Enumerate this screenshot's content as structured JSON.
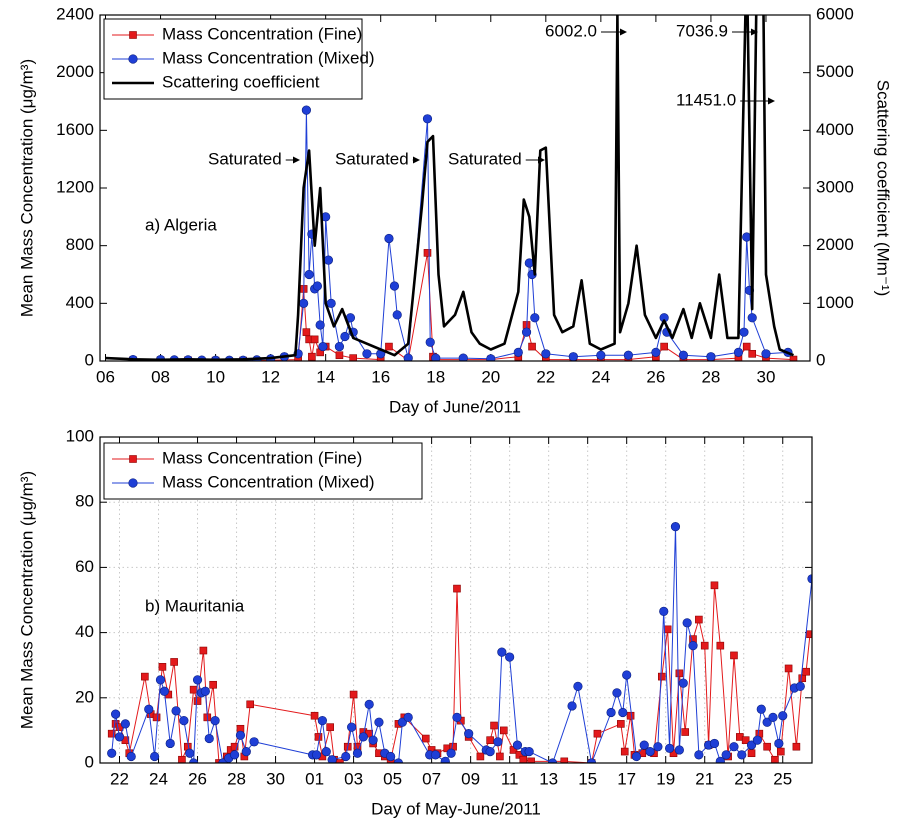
{
  "chart_data": [
    {
      "type": "line",
      "xlabel": "Day of June/2011",
      "ylabel": "Mean Mass Concentration (μg/m³)",
      "y2label": "Scattering coefficient (Mm⁻¹)",
      "xlim": [
        5.8,
        31.6
      ],
      "xticks": [
        {
          "value": 6,
          "label": "06"
        },
        {
          "value": 8,
          "label": "08"
        },
        10,
        12,
        14,
        16,
        18,
        20,
        22,
        24,
        26,
        28,
        30
      ],
      "ylim": [
        0,
        2400
      ],
      "yticks": [
        0,
        400,
        800,
        1200,
        1600,
        2000,
        2400
      ],
      "y2lim": [
        0,
        6000
      ],
      "y2ticks": [
        0,
        1000,
        2000,
        3000,
        4000,
        5000,
        6000
      ],
      "grid": false,
      "legend": "upper left",
      "annotations": [
        "Saturated",
        "Saturated",
        "Saturated",
        "6002.0",
        "7036.9",
        "11451.0",
        "a) Algeria"
      ],
      "series": [
        {
          "name": "Mass Concentration (Fine)",
          "color": "#e31a1c",
          "marker": "square",
          "x": [
            7,
            8,
            9,
            10,
            11,
            12,
            13,
            13.2,
            13.3,
            13.4,
            13.5,
            13.6,
            13.8,
            14,
            14.5,
            15,
            16,
            16.3,
            17,
            17.7,
            17.9,
            18,
            19,
            20,
            21,
            21.3,
            21.5,
            22,
            23,
            24,
            25,
            26,
            26.3,
            27,
            28,
            29,
            29.3,
            29.5,
            30,
            31
          ],
          "values": [
            5,
            5,
            5,
            3,
            3,
            5,
            10,
            500,
            200,
            150,
            30,
            150,
            60,
            100,
            40,
            20,
            10,
            100,
            5,
            750,
            30,
            10,
            10,
            10,
            30,
            250,
            100,
            10,
            10,
            10,
            10,
            30,
            100,
            10,
            10,
            20,
            100,
            50,
            20,
            10
          ]
        },
        {
          "name": "Mass Concentration (Mixed)",
          "color": "#1f3fd6",
          "marker": "circle",
          "x": [
            7,
            8,
            8.5,
            9,
            9.5,
            10,
            10.5,
            11,
            11.5,
            12,
            12.5,
            13,
            13.2,
            13.3,
            13.4,
            13.5,
            13.6,
            13.7,
            13.8,
            13.9,
            14,
            14.1,
            14.2,
            14.5,
            14.7,
            14.9,
            15,
            15.5,
            16,
            16.3,
            16.5,
            16.6,
            17,
            17.7,
            17.8,
            18,
            19,
            20,
            21,
            21.3,
            21.4,
            21.5,
            21.6,
            22,
            23,
            24,
            25,
            26,
            26.3,
            26.4,
            27,
            28,
            29,
            29.2,
            29.3,
            29.4,
            29.5,
            30,
            30.8
          ],
          "values": [
            10,
            10,
            8,
            8,
            6,
            5,
            5,
            5,
            8,
            15,
            30,
            50,
            400,
            1740,
            600,
            880,
            500,
            520,
            250,
            100,
            1000,
            700,
            400,
            100,
            170,
            300,
            200,
            50,
            50,
            850,
            520,
            320,
            20,
            1680,
            130,
            20,
            20,
            15,
            60,
            200,
            680,
            600,
            300,
            50,
            30,
            40,
            40,
            60,
            300,
            200,
            40,
            30,
            60,
            200,
            860,
            490,
            300,
            50,
            60
          ]
        },
        {
          "name": "Scattering coefficient",
          "color": "#000000",
          "marker": "none",
          "axis": "y2",
          "x": [
            6,
            7,
            8,
            9,
            10,
            11,
            12,
            12.9,
            13,
            13.2,
            13.4,
            13.6,
            13.8,
            14,
            14.3,
            14.6,
            15,
            15.5,
            16,
            16.5,
            17,
            17.5,
            17.7,
            17.9,
            18.1,
            18.3,
            18.7,
            19,
            19.3,
            19.6,
            20,
            20.5,
            21,
            21.2,
            21.4,
            21.6,
            21.8,
            22,
            22.3,
            22.6,
            23,
            23.3,
            23.6,
            24,
            24.5,
            24.6,
            24.7,
            25,
            25.3,
            25.6,
            26,
            26.3,
            26.6,
            27,
            27.3,
            27.6,
            28,
            28.3,
            28.6,
            29,
            29.3,
            29.5,
            29.8,
            30,
            30.3,
            30.5,
            31
          ],
          "values": [
            50,
            30,
            20,
            30,
            20,
            30,
            50,
            100,
            800,
            3000,
            3650,
            2000,
            3000,
            1000,
            600,
            900,
            400,
            300,
            200,
            100,
            300,
            2700,
            3800,
            3900,
            1500,
            600,
            800,
            1200,
            500,
            300,
            200,
            300,
            1200,
            2800,
            2500,
            1500,
            3650,
            3700,
            800,
            500,
            600,
            1400,
            300,
            200,
            300,
            6002,
            500,
            1000,
            2000,
            800,
            400,
            700,
            400,
            900,
            400,
            1000,
            400,
            1500,
            400,
            400,
            7036.9,
            900,
            11451,
            1500,
            600,
            200,
            100
          ]
        }
      ]
    },
    {
      "type": "line",
      "xlabel": "Day of May-June/2011",
      "ylabel": "Mean Mass Concentration (μg/m³)",
      "xlim": [
        21,
        57.5
      ],
      "xticks": [
        22,
        24,
        26,
        28,
        30,
        {
          "value": 32,
          "label": "01"
        },
        {
          "value": 34,
          "label": "03"
        },
        {
          "value": 36,
          "label": "05"
        },
        {
          "value": 38,
          "label": "07"
        },
        {
          "value": 40,
          "label": "09"
        },
        {
          "value": 42,
          "label": "11"
        },
        {
          "value": 44,
          "label": "13"
        },
        {
          "value": 46,
          "label": "15"
        },
        {
          "value": 48,
          "label": "17"
        },
        {
          "value": 50,
          "label": "19"
        },
        {
          "value": 52,
          "label": "21"
        },
        {
          "value": 54,
          "label": "23"
        },
        {
          "value": 56,
          "label": "25"
        }
      ],
      "ylim": [
        0,
        100
      ],
      "yticks": [
        0,
        20,
        40,
        60,
        80,
        100
      ],
      "grid": true,
      "legend": "upper left",
      "annotations": [
        "b) Mauritania"
      ],
      "series": [
        {
          "name": "Mass Concentration (Fine)",
          "color": "#e31a1c",
          "marker": "square",
          "x": [
            21.6,
            21.8,
            22,
            22.3,
            22.5,
            23.3,
            23.6,
            23.9,
            24.2,
            24.5,
            24.8,
            25.2,
            25.5,
            25.8,
            26,
            26.3,
            26.5,
            26.8,
            27.1,
            27.5,
            27.7,
            27.9,
            28.2,
            28.4,
            28.7,
            32,
            32.2,
            32.4,
            32.8,
            33,
            33.3,
            33.7,
            34,
            34.2,
            34.5,
            34.8,
            35,
            35.3,
            35.6,
            35.9,
            36.3,
            36.6,
            37.7,
            38,
            38.3,
            38.8,
            39.1,
            39.3,
            39.5,
            39.9,
            40.5,
            41,
            41.2,
            41.5,
            41.7,
            42.2,
            42.5,
            42.7,
            43.1,
            44.8,
            46.2,
            46.5,
            47.7,
            47.9,
            48.2,
            48.4,
            48.8,
            49.4,
            49.8,
            50.1,
            50.4,
            50.7,
            51,
            51.4,
            51.7,
            52,
            52.2,
            52.5,
            52.8,
            53.2,
            53.5,
            53.8,
            54.1,
            54.4,
            54.8,
            55.2,
            55.6,
            55.9,
            56.3,
            56.7,
            57,
            57.2,
            57.4
          ],
          "values": [
            9,
            12,
            11,
            7,
            3,
            26.5,
            15,
            14,
            29.5,
            21,
            31,
            1,
            5,
            22.5,
            19,
            34.5,
            14,
            24,
            0,
            2,
            4,
            5,
            10.5,
            2,
            18,
            14.5,
            8,
            2,
            11,
            1,
            0,
            5,
            21,
            5,
            9.5,
            9,
            6,
            3,
            2,
            1,
            12,
            14,
            7.5,
            4,
            3,
            4.5,
            5,
            53.5,
            13,
            8,
            2,
            7,
            11.5,
            2,
            10,
            4,
            2.5,
            1,
            0.5,
            0.5,
            0,
            9,
            12,
            3.5,
            14.5,
            2.5,
            3,
            3,
            26.5,
            41,
            3,
            27.5,
            9.5,
            38,
            44,
            36,
            5.5,
            54.5,
            36,
            2,
            33,
            8,
            7,
            3,
            9,
            5,
            1,
            3.5,
            29,
            5,
            26,
            28,
            39.5
          ]
        },
        {
          "name": "Mass Concentration (Mixed)",
          "color": "#1f3fd6",
          "marker": "circle",
          "x": [
            21.6,
            21.8,
            22,
            22.3,
            22.6,
            23.5,
            23.8,
            24.1,
            24.3,
            24.6,
            24.9,
            25.3,
            25.6,
            25.8,
            26,
            26.2,
            26.4,
            26.6,
            26.9,
            27.3,
            27.6,
            27.9,
            28.2,
            28.5,
            28.9,
            31.9,
            32.1,
            32.4,
            32.6,
            32.9,
            33.6,
            33.9,
            34.2,
            34.5,
            34.8,
            35,
            35.3,
            35.6,
            35.9,
            36.3,
            36.5,
            36.8,
            37.9,
            38.2,
            38.7,
            39,
            39.3,
            39.9,
            40.8,
            41,
            41.4,
            41.6,
            42,
            42.4,
            42.8,
            43,
            44.2,
            45.2,
            45.5,
            46.2,
            47.2,
            47.5,
            47.8,
            48,
            48.5,
            48.9,
            49.2,
            49.6,
            49.9,
            50.2,
            50.5,
            50.7,
            50.9,
            51.1,
            51.4,
            51.7,
            52.2,
            52.5,
            52.8,
            53.1,
            53.5,
            53.9,
            54.4,
            54.7,
            54.9,
            55.2,
            55.5,
            55.8,
            56,
            56.6,
            56.9,
            57.5
          ],
          "values": [
            3,
            15,
            8,
            12,
            2,
            16.5,
            2,
            25.5,
            22,
            6,
            16,
            13,
            3,
            0,
            25.5,
            21.5,
            22,
            7.5,
            13,
            0,
            1.5,
            2.5,
            8.5,
            3.5,
            6.5,
            2.5,
            2.5,
            13,
            3.5,
            1,
            2,
            11,
            3,
            8,
            18,
            7,
            12.5,
            3,
            2,
            0,
            12.5,
            14,
            2.5,
            2.5,
            0.5,
            3,
            14,
            9,
            4,
            3.5,
            6.5,
            34,
            32.5,
            5.5,
            3.5,
            3.5,
            0,
            17.5,
            23.5,
            0,
            15.5,
            21.5,
            15.5,
            27,
            2,
            5.5,
            3.5,
            5,
            46.5,
            4.5,
            72.5,
            4,
            24.5,
            43,
            36,
            2.5,
            5.5,
            6,
            0.5,
            2.5,
            5,
            2.5,
            5.5,
            7,
            16.5,
            12.5,
            14,
            6,
            14.5,
            23,
            23.5,
            56.5
          ]
        }
      ]
    }
  ]
}
